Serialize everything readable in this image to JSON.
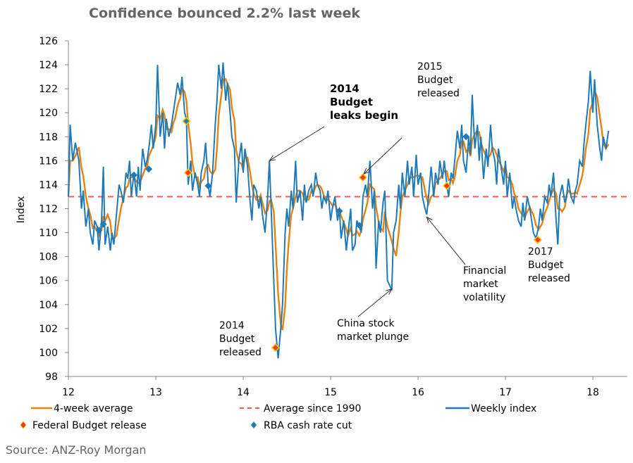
{
  "chart_data": {
    "type": "line",
    "title": "Confidence bounced 2.2% last week",
    "ylabel": "Index",
    "xlabel": "",
    "ylim": [
      98,
      126
    ],
    "xlim": [
      12,
      18.4
    ],
    "yticks": [
      "98",
      "100",
      "102",
      "104",
      "106",
      "108",
      "110",
      "112",
      "114",
      "116",
      "118",
      "120",
      "122",
      "124",
      "126"
    ],
    "xticks": [
      "12",
      "13",
      "14",
      "15",
      "16",
      "17",
      "18"
    ],
    "average_since_1990": 113,
    "colors": {
      "weekly": "#1f7ab8",
      "avg4": "#e8820c",
      "avg1990": "#f05a4a",
      "budget": "#f03c1e",
      "rba": "#1f7ab8"
    },
    "legend": [
      "4-week average",
      "Average since 1990",
      "Weekly index",
      "Federal Budget release",
      "RBA cash rate cut"
    ],
    "weekly": [
      [
        12.0,
        113
      ],
      [
        12.02,
        119
      ],
      [
        12.05,
        116
      ],
      [
        12.08,
        117.5
      ],
      [
        12.12,
        116
      ],
      [
        12.15,
        112
      ],
      [
        12.17,
        113.5
      ],
      [
        12.2,
        110.5
      ],
      [
        12.23,
        112
      ],
      [
        12.25,
        110
      ],
      [
        12.28,
        109
      ],
      [
        12.3,
        111
      ],
      [
        12.33,
        110.5
      ],
      [
        12.35,
        108.5
      ],
      [
        12.38,
        111
      ],
      [
        12.4,
        115.5
      ],
      [
        12.42,
        109
      ],
      [
        12.45,
        110.5
      ],
      [
        12.48,
        108.5
      ],
      [
        12.5,
        110
      ],
      [
        12.52,
        109
      ],
      [
        12.55,
        111.5
      ],
      [
        12.58,
        114
      ],
      [
        12.6,
        113.5
      ],
      [
        12.63,
        112.5
      ],
      [
        12.66,
        115
      ],
      [
        12.68,
        114.5
      ],
      [
        12.7,
        116
      ],
      [
        12.72,
        113
      ],
      [
        12.75,
        115
      ],
      [
        12.78,
        113
      ],
      [
        12.8,
        115.5
      ],
      [
        12.82,
        113.5
      ],
      [
        12.85,
        117
      ],
      [
        12.88,
        115.5
      ],
      [
        12.9,
        116
      ],
      [
        12.92,
        117
      ],
      [
        12.95,
        119
      ],
      [
        12.97,
        117
      ],
      [
        13.0,
        119
      ],
      [
        13.02,
        124
      ],
      [
        13.05,
        118
      ],
      [
        13.08,
        120
      ],
      [
        13.1,
        117
      ],
      [
        13.12,
        119.5
      ],
      [
        13.15,
        118
      ],
      [
        13.18,
        119
      ],
      [
        13.2,
        120
      ],
      [
        13.22,
        121
      ],
      [
        13.25,
        122.5
      ],
      [
        13.28,
        121.5
      ],
      [
        13.3,
        123
      ],
      [
        13.33,
        120
      ],
      [
        13.35,
        119.5
      ],
      [
        13.37,
        114
      ],
      [
        13.4,
        116
      ],
      [
        13.42,
        113.5
      ],
      [
        13.45,
        115
      ],
      [
        13.48,
        114
      ],
      [
        13.5,
        113
      ],
      [
        13.52,
        115
      ],
      [
        13.55,
        116
      ],
      [
        13.57,
        117.5
      ],
      [
        13.6,
        114
      ],
      [
        13.62,
        113
      ],
      [
        13.65,
        115
      ],
      [
        13.68,
        119
      ],
      [
        13.7,
        121
      ],
      [
        13.72,
        124
      ],
      [
        13.75,
        122
      ],
      [
        13.77,
        124.2
      ],
      [
        13.8,
        121
      ],
      [
        13.82,
        122.5
      ],
      [
        13.85,
        120
      ],
      [
        13.87,
        118
      ],
      [
        13.9,
        117
      ],
      [
        13.92,
        112.5
      ],
      [
        13.95,
        116
      ],
      [
        13.98,
        117.5
      ],
      [
        14.0,
        115
      ],
      [
        14.02,
        117
      ],
      [
        14.05,
        115.5
      ],
      [
        14.08,
        112.5
      ],
      [
        14.1,
        111
      ],
      [
        14.12,
        114
      ],
      [
        14.15,
        113.5
      ],
      [
        14.18,
        112
      ],
      [
        14.2,
        113
      ],
      [
        14.22,
        111.5
      ],
      [
        14.25,
        110
      ],
      [
        14.28,
        113
      ],
      [
        14.3,
        116
      ],
      [
        14.32,
        112
      ],
      [
        14.35,
        106
      ],
      [
        14.37,
        102
      ],
      [
        14.4,
        99.5
      ],
      [
        14.43,
        102
      ],
      [
        14.45,
        104
      ],
      [
        14.48,
        110
      ],
      [
        14.5,
        112
      ],
      [
        14.52,
        110.5
      ],
      [
        14.55,
        113.5
      ],
      [
        14.57,
        112
      ],
      [
        14.6,
        116
      ],
      [
        14.62,
        112.5
      ],
      [
        14.65,
        113.5
      ],
      [
        14.68,
        111
      ],
      [
        14.7,
        114
      ],
      [
        14.72,
        112.5
      ],
      [
        14.75,
        113.5
      ],
      [
        14.78,
        114
      ],
      [
        14.8,
        113
      ],
      [
        14.83,
        115
      ],
      [
        14.85,
        114
      ],
      [
        14.88,
        113.5
      ],
      [
        14.9,
        112
      ],
      [
        14.92,
        113
      ],
      [
        14.95,
        112.5
      ],
      [
        14.97,
        113.5
      ],
      [
        15.0,
        111
      ],
      [
        15.02,
        112
      ],
      [
        15.05,
        113
      ],
      [
        15.08,
        111
      ],
      [
        15.1,
        112
      ],
      [
        15.12,
        109.5
      ],
      [
        15.15,
        111
      ],
      [
        15.18,
        108.5
      ],
      [
        15.2,
        110
      ],
      [
        15.23,
        112
      ],
      [
        15.25,
        108.5
      ],
      [
        15.28,
        109
      ],
      [
        15.3,
        111
      ],
      [
        15.33,
        110.5
      ],
      [
        15.35,
        110
      ],
      [
        15.37,
        113
      ],
      [
        15.4,
        114
      ],
      [
        15.42,
        113
      ],
      [
        15.45,
        116
      ],
      [
        15.48,
        112
      ],
      [
        15.5,
        113.5
      ],
      [
        15.52,
        107
      ],
      [
        15.55,
        111
      ],
      [
        15.57,
        110
      ],
      [
        15.6,
        112.5
      ],
      [
        15.62,
        113.5
      ],
      [
        15.65,
        106
      ],
      [
        15.7,
        105.2
      ],
      [
        15.72,
        110
      ],
      [
        15.75,
        111
      ],
      [
        15.78,
        114
      ],
      [
        15.8,
        112
      ],
      [
        15.82,
        115
      ],
      [
        15.85,
        113
      ],
      [
        15.88,
        116
      ],
      [
        15.9,
        114
      ],
      [
        15.93,
        115.5
      ],
      [
        15.95,
        113
      ],
      [
        15.98,
        116.5
      ],
      [
        16.0,
        114
      ],
      [
        16.03,
        115
      ],
      [
        16.05,
        113
      ],
      [
        16.08,
        112
      ],
      [
        16.1,
        111.5
      ],
      [
        16.12,
        113
      ],
      [
        16.15,
        115.5
      ],
      [
        16.18,
        113
      ],
      [
        16.2,
        115
      ],
      [
        16.23,
        114
      ],
      [
        16.25,
        116
      ],
      [
        16.28,
        114.5
      ],
      [
        16.3,
        116
      ],
      [
        16.33,
        114
      ],
      [
        16.35,
        113
      ],
      [
        16.38,
        115
      ],
      [
        16.4,
        114.5
      ],
      [
        16.42,
        116
      ],
      [
        16.45,
        118.5
      ],
      [
        16.48,
        117
      ],
      [
        16.5,
        119
      ],
      [
        16.52,
        116
      ],
      [
        16.55,
        115
      ],
      [
        16.58,
        118
      ],
      [
        16.6,
        116.5
      ],
      [
        16.62,
        121.5
      ],
      [
        16.65,
        117
      ],
      [
        16.68,
        119
      ],
      [
        16.7,
        116
      ],
      [
        16.72,
        118
      ],
      [
        16.75,
        114.5
      ],
      [
        16.78,
        117
      ],
      [
        16.8,
        115.5
      ],
      [
        16.83,
        119
      ],
      [
        16.85,
        117
      ],
      [
        16.88,
        116
      ],
      [
        16.9,
        114
      ],
      [
        16.92,
        117
      ],
      [
        16.95,
        115.5
      ],
      [
        16.98,
        114
      ],
      [
        17.0,
        116
      ],
      [
        17.02,
        113
      ],
      [
        17.05,
        115
      ],
      [
        17.08,
        112
      ],
      [
        17.1,
        113
      ],
      [
        17.12,
        112
      ],
      [
        17.15,
        111
      ],
      [
        17.18,
        110.5
      ],
      [
        17.2,
        112.5
      ],
      [
        17.22,
        111
      ],
      [
        17.25,
        113
      ],
      [
        17.28,
        112
      ],
      [
        17.3,
        111
      ],
      [
        17.32,
        110
      ],
      [
        17.35,
        109.5
      ],
      [
        17.38,
        110.5
      ],
      [
        17.4,
        112
      ],
      [
        17.42,
        111
      ],
      [
        17.45,
        113
      ],
      [
        17.48,
        112.5
      ],
      [
        17.5,
        114
      ],
      [
        17.52,
        113
      ],
      [
        17.55,
        115
      ],
      [
        17.58,
        111
      ],
      [
        17.6,
        109
      ],
      [
        17.62,
        113
      ],
      [
        17.65,
        114
      ],
      [
        17.68,
        112.5
      ],
      [
        17.7,
        113
      ],
      [
        17.72,
        114.5
      ],
      [
        17.75,
        113
      ],
      [
        17.78,
        112.5
      ],
      [
        17.8,
        113.5
      ],
      [
        17.82,
        114
      ],
      [
        17.85,
        116
      ],
      [
        17.88,
        115.5
      ],
      [
        17.9,
        117.5
      ],
      [
        17.92,
        119
      ],
      [
        17.95,
        121
      ],
      [
        17.97,
        123.5
      ],
      [
        18.0,
        120
      ],
      [
        18.02,
        122.8
      ],
      [
        18.05,
        119
      ],
      [
        18.08,
        117
      ],
      [
        18.1,
        116
      ],
      [
        18.12,
        118
      ],
      [
        18.15,
        117
      ],
      [
        18.18,
        118.5
      ]
    ],
    "budget_releases": [
      [
        13.37,
        115
      ],
      [
        14.37,
        100.4
      ],
      [
        15.37,
        114.6
      ],
      [
        16.33,
        113.9
      ],
      [
        17.37,
        109.4
      ]
    ],
    "rba_cuts": [
      [
        12.35,
        110.2
      ],
      [
        12.4,
        110.7
      ],
      [
        12.75,
        114.8
      ],
      [
        12.92,
        115.3
      ],
      [
        13.35,
        119.3
      ],
      [
        13.6,
        113.9
      ],
      [
        15.1,
        111.8
      ],
      [
        15.33,
        110.6
      ],
      [
        16.55,
        118
      ]
    ],
    "annotations": [
      {
        "id": "leaks",
        "lines": [
          "2014",
          "Budget",
          "leaks begin"
        ],
        "point": [
          14.3,
          116
        ]
      },
      {
        "id": "b2015",
        "lines": [
          "2015",
          "Budget",
          "released"
        ],
        "point": [
          15.38,
          114.9
        ]
      },
      {
        "id": "b2014",
        "lines": [
          "2014",
          "Budget",
          "released"
        ],
        "point": [
          14.37,
          100.4
        ]
      },
      {
        "id": "china",
        "lines": [
          "China stock",
          "market plunge"
        ],
        "point": [
          15.7,
          105.3
        ]
      },
      {
        "id": "fin",
        "lines": [
          "Financial",
          "market",
          "volatility"
        ],
        "point": [
          16.1,
          111.3
        ]
      },
      {
        "id": "b2017",
        "lines": [
          "2017",
          "Budget",
          "released"
        ],
        "point": [
          17.37,
          109.4
        ]
      }
    ]
  },
  "source": "Source: ANZ-Roy Morgan"
}
